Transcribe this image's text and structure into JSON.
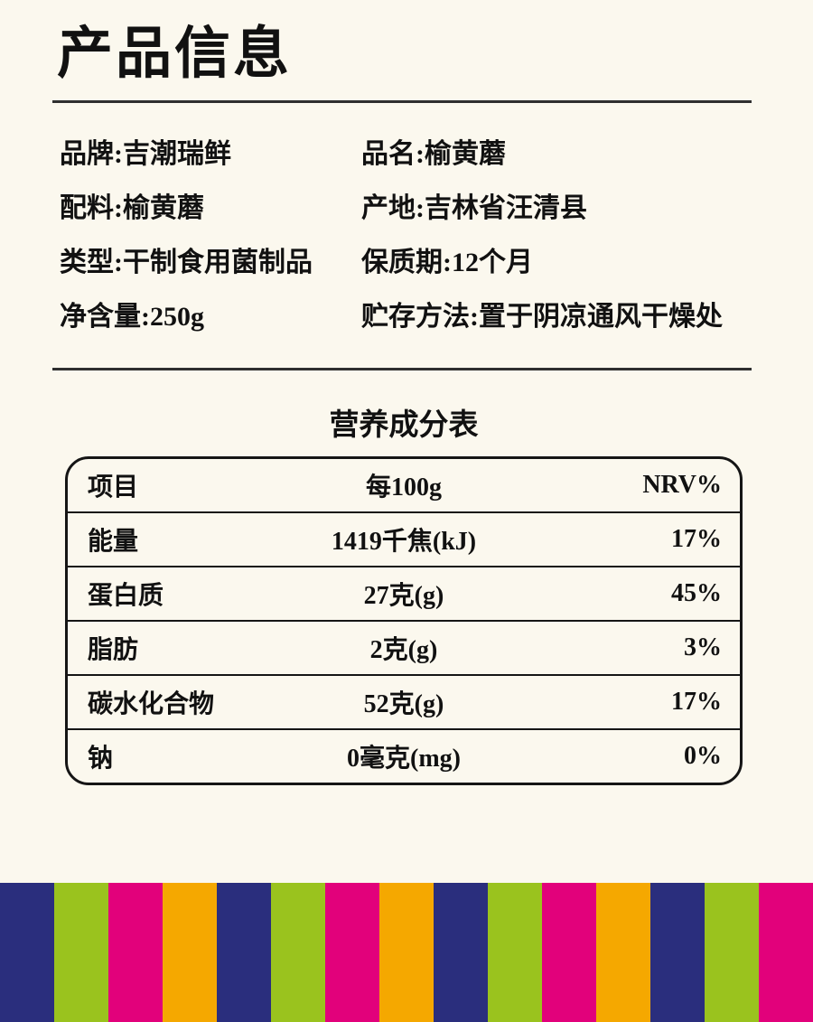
{
  "header": {
    "title": "产品信息"
  },
  "info": {
    "rows": [
      {
        "left": "品牌:吉潮瑞鲜",
        "right": "品名:榆黄蘑"
      },
      {
        "left": "配料:榆黄蘑",
        "right": "产地:吉林省汪清县"
      },
      {
        "left": "类型:干制食用菌制品",
        "right": "保质期:12个月"
      },
      {
        "left": "净含量:250g",
        "right": "贮存方法:置于阴凉通风干燥处"
      }
    ]
  },
  "nutrition": {
    "title": "营养成分表",
    "header": {
      "item": "项目",
      "per100g": "每100g",
      "nrv": "NRV%"
    },
    "rows": [
      {
        "item": "能量",
        "value": "1419千焦(kJ)",
        "nrv": "17%"
      },
      {
        "item": "蛋白质",
        "value": "27克(g)",
        "nrv": "45%"
      },
      {
        "item": "脂肪",
        "value": "2克(g)",
        "nrv": "3%"
      },
      {
        "item": "碳水化合物",
        "value": "52克(g)",
        "nrv": "17%"
      },
      {
        "item": "钠",
        "value": "0毫克(mg)",
        "nrv": "0%"
      }
    ]
  },
  "footer": {
    "stripe_colors": [
      "#2A2E7D",
      "#9AC31E",
      "#E2017B",
      "#F5A800",
      "#2A2E7D",
      "#9AC31E",
      "#E2017B",
      "#F5A800",
      "#2A2E7D",
      "#9AC31E",
      "#E2017B",
      "#F5A800",
      "#2A2E7D",
      "#9AC31E",
      "#E2017B"
    ]
  },
  "colors": {
    "background": "#FBF8EE",
    "text": "#111111",
    "divider": "#2F2F2F",
    "table_border": "#151515"
  }
}
